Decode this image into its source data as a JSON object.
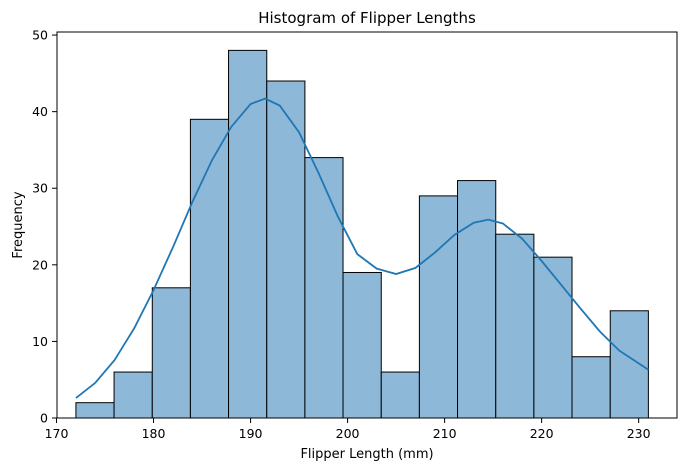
{
  "chart_data": {
    "type": "bar",
    "title": "Histogram of Flipper Lengths",
    "xlabel": "Flipper Length (mm)",
    "ylabel": "Frequency",
    "xlim": [
      170.05,
      233.95
    ],
    "ylim": [
      0,
      50.4
    ],
    "xticks": [
      170,
      180,
      190,
      200,
      210,
      220,
      230
    ],
    "yticks": [
      0,
      10,
      20,
      30,
      40,
      50
    ],
    "bins": {
      "edges": [
        172,
        175.93,
        179.87,
        183.8,
        187.73,
        191.67,
        195.6,
        199.53,
        203.47,
        207.4,
        211.33,
        215.27,
        219.2,
        223.13,
        227.07,
        231
      ],
      "counts": [
        2,
        6,
        17,
        39,
        48,
        44,
        34,
        19,
        6,
        29,
        31,
        24,
        21,
        8,
        14
      ]
    },
    "kde": {
      "name": "KDE",
      "x": [
        172,
        174,
        176,
        178,
        180,
        182,
        184,
        186,
        188,
        190,
        191.5,
        193,
        195,
        197,
        199,
        201,
        203,
        205,
        207,
        209,
        211,
        213,
        214.5,
        216,
        218,
        220,
        222,
        224,
        226,
        228,
        231
      ],
      "y": [
        2.6,
        4.6,
        7.6,
        11.7,
        16.7,
        22.3,
        28.2,
        33.6,
        38.0,
        41.0,
        41.7,
        40.8,
        37.3,
        32.0,
        26.3,
        21.4,
        19.5,
        18.8,
        19.6,
        21.6,
        23.9,
        25.5,
        25.9,
        25.4,
        23.4,
        20.5,
        17.4,
        14.3,
        11.3,
        8.8,
        6.3
      ]
    },
    "grid": false,
    "legend": "none",
    "colors": {
      "bar_fill": "#8eb8d8",
      "bar_edge": "#000000",
      "kde_line": "#1f77b4",
      "axes": "#000000"
    }
  }
}
